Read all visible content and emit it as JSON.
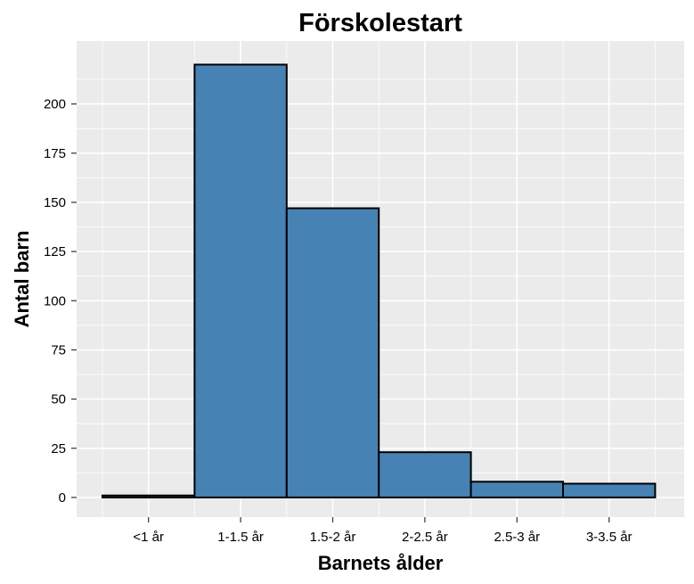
{
  "chart_data": {
    "type": "bar",
    "title": "Förskolestart",
    "xlabel": "Barnets ålder",
    "ylabel": "Antal barn",
    "categories": [
      "<1 år",
      "1-1.5 år",
      "1.5-2 år",
      "2-2.5 år",
      "2.5-3 år",
      "3-3.5 år"
    ],
    "values": [
      1,
      220,
      147,
      23,
      8,
      7
    ],
    "ylim": [
      -10,
      232
    ],
    "yticks": [
      0,
      25,
      50,
      75,
      100,
      125,
      150,
      175,
      200
    ],
    "grid": true,
    "legend": "none",
    "colors": {
      "bar_fill": "#4682b4",
      "bar_stroke": "#000000",
      "panel_background": "#ebebeb",
      "grid": "#ffffff",
      "text": "#000000",
      "tick_text": "#000000"
    }
  }
}
